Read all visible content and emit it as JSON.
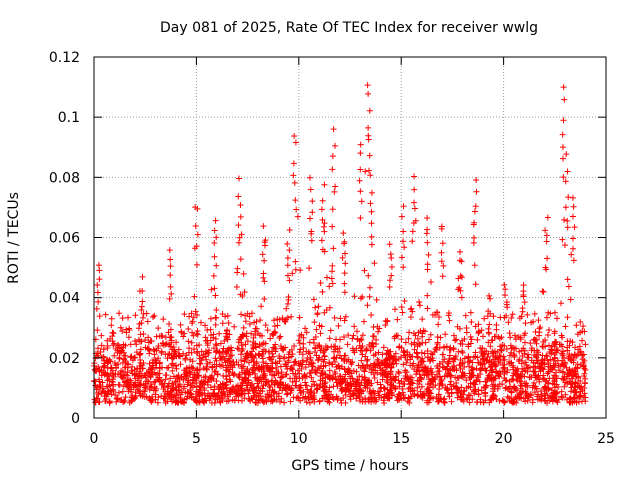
{
  "chart_data": {
    "type": "scatter",
    "title": "Day 081 of 2025, Rate Of TEC Index for receiver wwlg",
    "xlabel": "GPS time / hours",
    "ylabel": "ROTI / TECUs",
    "xlim": [
      0,
      25
    ],
    "ylim": [
      0,
      0.12
    ],
    "xticks": [
      0,
      5,
      10,
      15,
      20,
      25
    ],
    "xtick_labels": [
      "0",
      "5",
      "10",
      "15",
      "20",
      "25"
    ],
    "yticks": [
      0,
      0.02,
      0.04,
      0.06,
      0.08,
      0.1,
      0.12
    ],
    "ytick_labels": [
      "0",
      "0.02",
      "0.04",
      "0.06",
      "0.08",
      "0.1",
      "0.12"
    ],
    "grid": true,
    "marker": "+",
    "series_color": "#ff0000",
    "data_time_range_hours": [
      0,
      24
    ],
    "typical_band": [
      0.005,
      0.03
    ],
    "peaks": [
      {
        "x": 0.2,
        "y": 0.053
      },
      {
        "x": 2.3,
        "y": 0.047
      },
      {
        "x": 3.7,
        "y": 0.056
      },
      {
        "x": 5.0,
        "y": 0.073
      },
      {
        "x": 5.9,
        "y": 0.068
      },
      {
        "x": 7.1,
        "y": 0.08
      },
      {
        "x": 8.3,
        "y": 0.065
      },
      {
        "x": 9.5,
        "y": 0.063
      },
      {
        "x": 9.8,
        "y": 0.096
      },
      {
        "x": 10.6,
        "y": 0.081
      },
      {
        "x": 11.2,
        "y": 0.078
      },
      {
        "x": 11.7,
        "y": 0.097
      },
      {
        "x": 12.2,
        "y": 0.064
      },
      {
        "x": 13.0,
        "y": 0.093
      },
      {
        "x": 13.4,
        "y": 0.113
      },
      {
        "x": 13.5,
        "y": 0.081
      },
      {
        "x": 14.5,
        "y": 0.06
      },
      {
        "x": 15.1,
        "y": 0.071
      },
      {
        "x": 15.6,
        "y": 0.081
      },
      {
        "x": 16.3,
        "y": 0.068
      },
      {
        "x": 17.0,
        "y": 0.066
      },
      {
        "x": 17.9,
        "y": 0.058
      },
      {
        "x": 18.6,
        "y": 0.08
      },
      {
        "x": 19.3,
        "y": 0.042
      },
      {
        "x": 20.1,
        "y": 0.047
      },
      {
        "x": 21.0,
        "y": 0.047
      },
      {
        "x": 22.1,
        "y": 0.068
      },
      {
        "x": 22.9,
        "y": 0.112
      },
      {
        "x": 23.1,
        "y": 0.088
      },
      {
        "x": 23.4,
        "y": 0.074
      }
    ],
    "sample_count": 3000,
    "seed": 81
  }
}
